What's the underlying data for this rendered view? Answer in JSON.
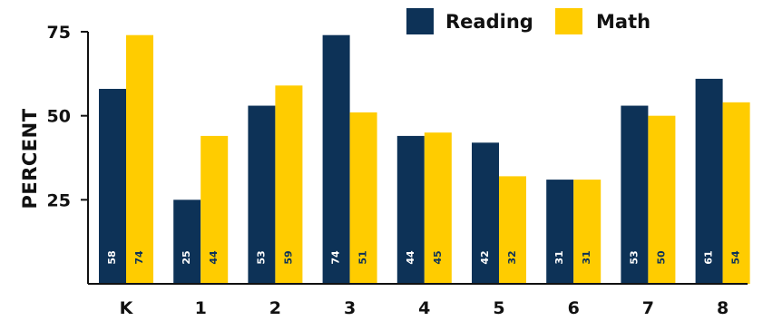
{
  "chart_data": {
    "type": "bar",
    "categories": [
      "K",
      "1",
      "2",
      "3",
      "4",
      "5",
      "6",
      "7",
      "8"
    ],
    "series": [
      {
        "name": "Reading",
        "color": "#0d3257",
        "values": [
          58,
          25,
          53,
          74,
          44,
          42,
          31,
          53,
          61
        ]
      },
      {
        "name": "Math",
        "color": "#ffcc00",
        "values": [
          74,
          44,
          59,
          51,
          45,
          32,
          31,
          50,
          54
        ]
      }
    ],
    "ylabel": "PERCENT",
    "yticks": [
      25,
      50,
      75
    ],
    "ylim": [
      0,
      75
    ],
    "grid": false,
    "legend_position": "top-right",
    "label_colors": {
      "Reading": "#ffffff",
      "Math": "#0d3257"
    }
  }
}
